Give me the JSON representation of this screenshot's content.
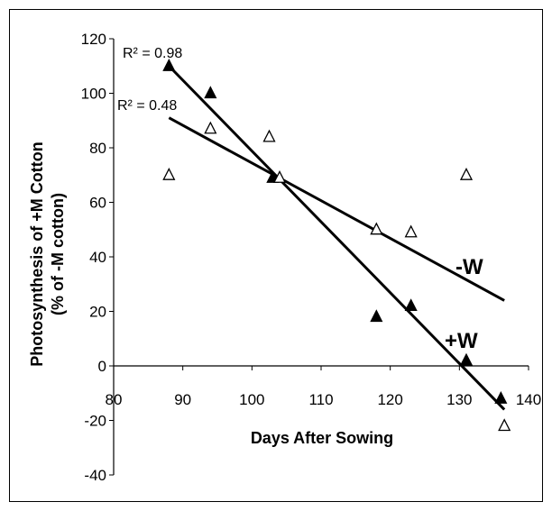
{
  "chart_data": {
    "type": "scatter",
    "xlabel": "Days After Sowing",
    "ylabel": [
      "Photosynthesis of +M Cotton",
      "(% of -M cotton)"
    ],
    "xlim": [
      80,
      140
    ],
    "ylim": [
      -40,
      120
    ],
    "xticks": [
      80,
      90,
      100,
      110,
      120,
      130,
      140
    ],
    "yticks": [
      -40,
      -20,
      0,
      20,
      40,
      60,
      80,
      100,
      120
    ],
    "grid": false,
    "series": [
      {
        "name": "+W",
        "marker": "filled-triangle",
        "color": "#000000",
        "points": [
          [
            88,
            110
          ],
          [
            94,
            100
          ],
          [
            103,
            69
          ],
          [
            118,
            18
          ],
          [
            123,
            22
          ],
          [
            131,
            2
          ],
          [
            136,
            -12
          ]
        ],
        "fit": {
          "x": [
            88,
            136.5
          ],
          "y": [
            110,
            -16
          ],
          "r2_label": "R² = 0.98"
        }
      },
      {
        "name": "-W",
        "marker": "open-triangle",
        "color": "#000000",
        "points": [
          [
            88,
            70
          ],
          [
            94,
            87
          ],
          [
            102.5,
            84
          ],
          [
            104,
            69
          ],
          [
            118,
            50
          ],
          [
            123,
            49
          ],
          [
            131,
            70
          ],
          [
            136.5,
            -22
          ]
        ],
        "fit": {
          "x": [
            88,
            136.5
          ],
          "y": [
            91,
            24
          ],
          "r2_label": "R² = 0.48"
        }
      }
    ]
  }
}
